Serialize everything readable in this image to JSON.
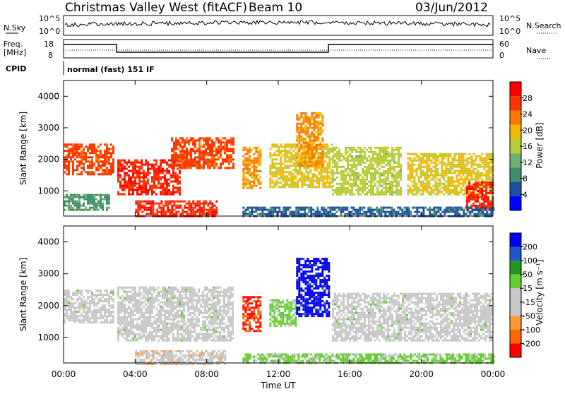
{
  "header": {
    "station": "Christmas Valley West (fitACF)",
    "beam": "Beam 10",
    "date": "03/Jun/2012"
  },
  "noise_panel": {
    "left_label": "N.Sky",
    "left_ticks": [
      "10^5",
      "10^0"
    ],
    "right_label": "N.Search",
    "right_ticks": [
      "10^5",
      "10^0"
    ]
  },
  "freq_panel": {
    "left_label_line1": "Freq.",
    "left_label_line2": "[MHz]",
    "left_ticks": [
      "18",
      "8"
    ],
    "right_label": "Nave",
    "right_ticks": [
      "60",
      "0"
    ]
  },
  "cpid": {
    "label": "CPID",
    "mode": "normal (fast) 151 IF"
  },
  "colors": {
    "power_scale": [
      "#0000ff",
      "#1c4f9c",
      "#3e8f6a",
      "#6fb06a",
      "#b8cc3a",
      "#f5b800",
      "#ff7700",
      "#ff3300",
      "#ff0000"
    ],
    "velocity_scale": [
      "#ff0000",
      "#ff6600",
      "#ff9933",
      "#c8c8c8",
      "#c8c8c8",
      "#66cc33",
      "#229922",
      "#2255cc",
      "#0000ee"
    ]
  },
  "chart_data": [
    {
      "type": "heatmap",
      "title": "",
      "ylabel": "Slant Range [km]",
      "ylim": [
        200,
        4500
      ],
      "y_ticks": [
        "1000",
        "2000",
        "3000",
        "4000"
      ],
      "xlabel": "",
      "x_ticks": [],
      "colorbar": {
        "label": "Power [dB]",
        "range": [
          0,
          32
        ],
        "ticks": [
          "4",
          "8",
          "12",
          "16",
          "20",
          "24",
          "28"
        ]
      },
      "regions": [
        {
          "t0": 0.0,
          "t1": 2.8,
          "r0": 1500,
          "r1": 2500,
          "power": 26
        },
        {
          "t0": 0.0,
          "t1": 2.6,
          "r0": 400,
          "r1": 900,
          "power": 10
        },
        {
          "t0": 3.0,
          "t1": 6.5,
          "r0": 900,
          "r1": 2000,
          "power": 28
        },
        {
          "t0": 4.0,
          "t1": 8.5,
          "r0": 200,
          "r1": 700,
          "power": 28
        },
        {
          "t0": 6.0,
          "t1": 9.5,
          "r0": 1700,
          "r1": 2700,
          "power": 26
        },
        {
          "t0": 10.0,
          "t1": 11.0,
          "r0": 1100,
          "r1": 2400,
          "power": 22
        },
        {
          "t0": 11.5,
          "t1": 15.0,
          "r0": 1100,
          "r1": 2500,
          "power": 18
        },
        {
          "t0": 13.0,
          "t1": 14.5,
          "r0": 1800,
          "r1": 3500,
          "power": 22
        },
        {
          "t0": 15.0,
          "t1": 18.8,
          "r0": 900,
          "r1": 2400,
          "power": 16
        },
        {
          "t0": 19.2,
          "t1": 24.0,
          "r0": 900,
          "r1": 2200,
          "power": 18
        },
        {
          "t0": 22.5,
          "t1": 24.0,
          "r0": 400,
          "r1": 1300,
          "power": 28
        },
        {
          "t0": 10.0,
          "t1": 24.0,
          "r0": 200,
          "r1": 500,
          "power": 6
        }
      ]
    },
    {
      "type": "heatmap",
      "title": "",
      "ylabel": "Slant Range [km]",
      "ylim": [
        200,
        4500
      ],
      "y_ticks": [
        "1000",
        "2000",
        "3000",
        "4000"
      ],
      "xlabel": "Time UT",
      "x_ticks": [
        "00:00",
        "04:00",
        "08:00",
        "12:00",
        "16:00",
        "20:00",
        "00:00"
      ],
      "colorbar": {
        "label": "Velocity [m s⁻¹]",
        "range": [
          -250,
          250
        ],
        "ticks": [
          "200",
          "100",
          "50",
          "15",
          "-15",
          "-50",
          "-100",
          "-200"
        ]
      },
      "regions": [
        {
          "t0": 0.0,
          "t1": 2.8,
          "r0": 1500,
          "r1": 2500,
          "velocity": 0
        },
        {
          "t0": 3.0,
          "t1": 9.5,
          "r0": 900,
          "r1": 2600,
          "velocity": 0
        },
        {
          "t0": 4.0,
          "t1": 9.0,
          "r0": 200,
          "r1": 600,
          "velocity": -60
        },
        {
          "t0": 10.0,
          "t1": 11.0,
          "r0": 1200,
          "r1": 2300,
          "velocity": -200
        },
        {
          "t0": 11.5,
          "t1": 13.0,
          "r0": 1400,
          "r1": 2200,
          "velocity": 40
        },
        {
          "t0": 13.0,
          "t1": 14.8,
          "r0": 1700,
          "r1": 3500,
          "velocity": 220
        },
        {
          "t0": 15.0,
          "t1": 24.0,
          "r0": 900,
          "r1": 2400,
          "velocity": 0
        },
        {
          "t0": 10.0,
          "t1": 24.0,
          "r0": 200,
          "r1": 500,
          "velocity": 40
        }
      ]
    }
  ]
}
